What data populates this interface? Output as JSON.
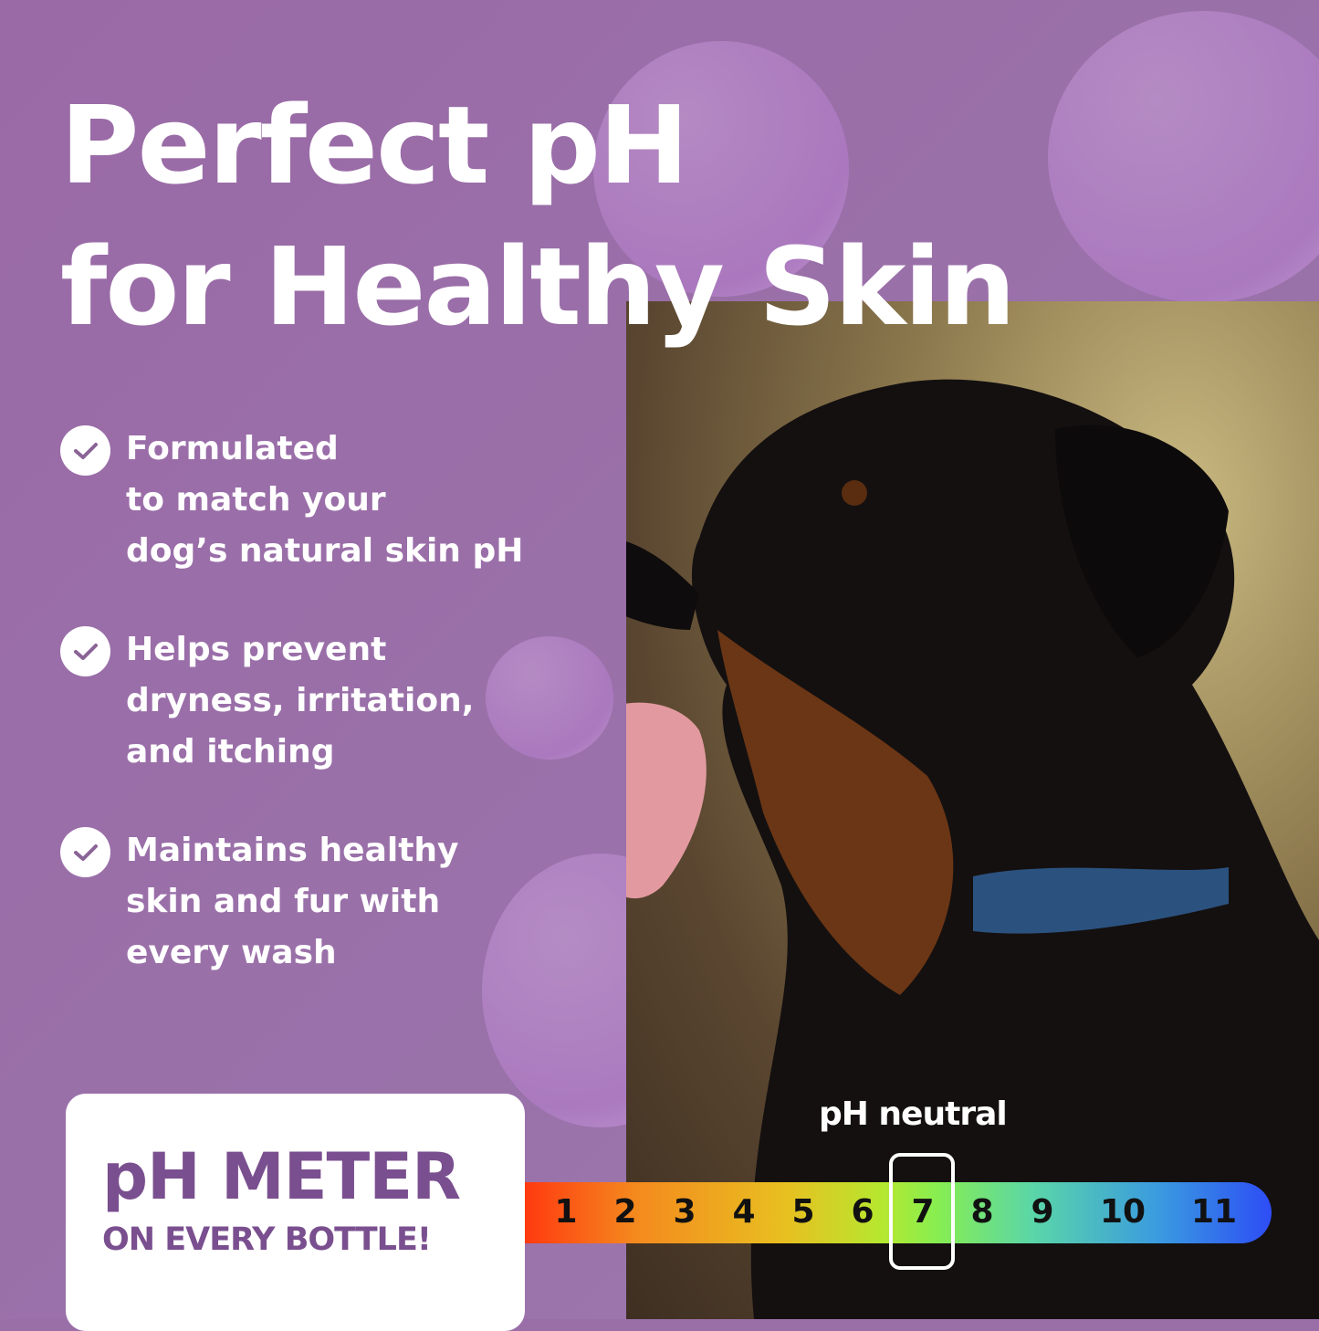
{
  "headline": {
    "line1": "Perfect pH",
    "line2": "for Healthy Skin"
  },
  "bullets": [
    {
      "icon": "check-circle-icon",
      "lines": [
        "Formulated",
        "to match your",
        "dog’s natural skin pH"
      ]
    },
    {
      "icon": "check-circle-icon",
      "lines": [
        "Helps prevent",
        "dryness, irritation,",
        "and itching"
      ]
    },
    {
      "icon": "check-circle-icon",
      "lines": [
        "Maintains healthy",
        "skin and fur with",
        "every wash"
      ]
    }
  ],
  "meter_box": {
    "title": "pH METER",
    "subtitle": "ON EVERY BOTTLE!"
  },
  "ph_scale": {
    "labels": [
      "1",
      "2",
      "3",
      "4",
      "5",
      "6",
      "7",
      "8",
      "9",
      "10",
      "11"
    ],
    "highlighted": "7",
    "highlight_label": "pH neutral"
  },
  "colors": {
    "background": "#9a6fa8",
    "accent_text": "#7a4f8f",
    "scale_start": "#ff3a10",
    "scale_mid": "#88ee50",
    "scale_end": "#2d4df5"
  },
  "photo": {
    "subject": "rottweiler-dog-photo"
  }
}
